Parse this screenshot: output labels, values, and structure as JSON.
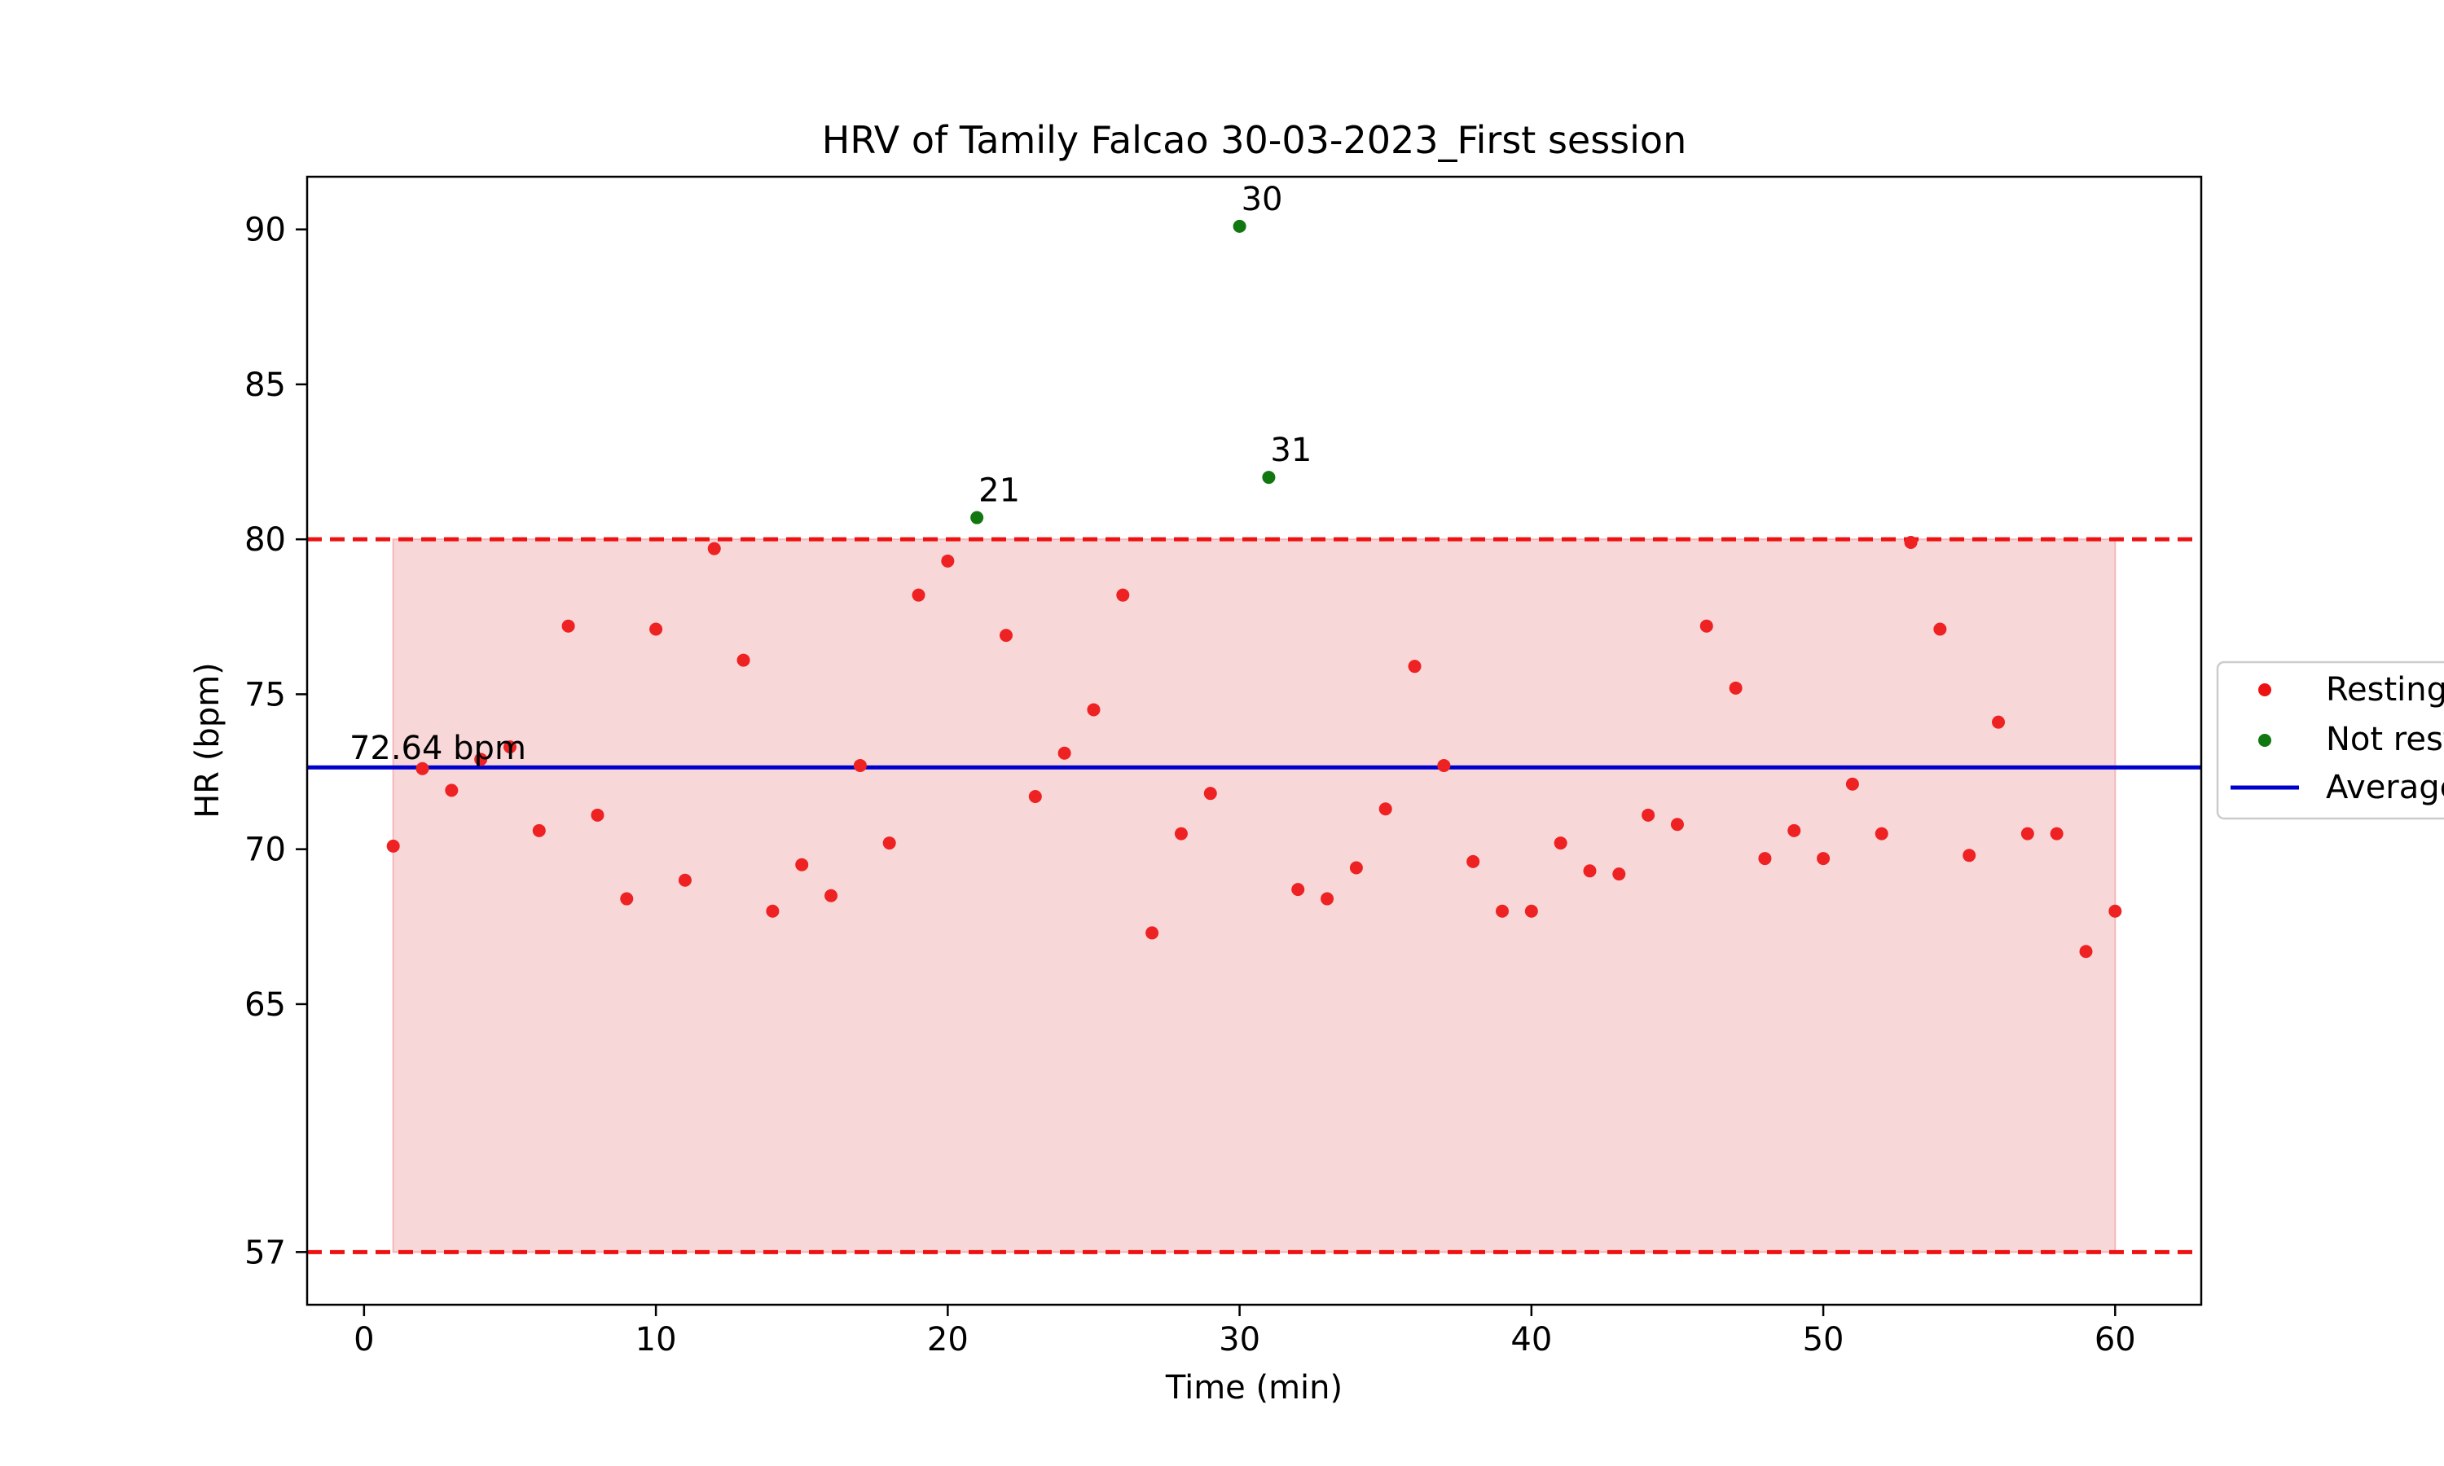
{
  "chart_data": {
    "type": "scatter",
    "title": "HRV of Tamily Falcao 30-03-2023_First session",
    "xlabel": "Time (min)",
    "ylabel": "HR (bpm)",
    "xlim": [
      -1.95,
      62.95
    ],
    "ylim": [
      55.3,
      91.7
    ],
    "xticks": [
      "0",
      "10",
      "20",
      "30",
      "40",
      "50",
      "60"
    ],
    "yticks": [
      "57",
      "65",
      "70",
      "75",
      "80",
      "85",
      "90"
    ],
    "grid": false,
    "legend_position": "right (clipped)",
    "average": {
      "value": 72.64,
      "label": "72.64 bpm",
      "color": "#0000cc"
    },
    "thresholds": {
      "upper": 80,
      "lower": 57,
      "color": "#ee1111"
    },
    "band": {
      "x_from": 1,
      "x_to": 60,
      "y_from": 57,
      "y_to": 80,
      "color": "#f8d7d8"
    },
    "series": [
      {
        "name": "Resting",
        "color": "#ee2222",
        "x": [
          1,
          2,
          3,
          4,
          5,
          6,
          7,
          8,
          9,
          10,
          11,
          12,
          13,
          14,
          15,
          16,
          17,
          18,
          19,
          20,
          22,
          23,
          24,
          25,
          26,
          27,
          28,
          29,
          32,
          33,
          34,
          35,
          36,
          37,
          38,
          39,
          40,
          41,
          42,
          43,
          44,
          45,
          46,
          47,
          48,
          49,
          50,
          51,
          52,
          53,
          54,
          55,
          56,
          57,
          58,
          59,
          60
        ],
        "y": [
          70.1,
          72.6,
          71.9,
          72.9,
          73.3,
          70.6,
          77.2,
          71.1,
          68.4,
          77.1,
          69.0,
          79.7,
          76.1,
          68.0,
          69.5,
          68.5,
          72.7,
          70.2,
          78.2,
          79.3,
          76.9,
          71.7,
          73.1,
          74.5,
          78.2,
          67.3,
          70.5,
          71.8,
          68.7,
          68.4,
          69.4,
          71.3,
          75.9,
          72.7,
          69.6,
          68.0,
          68.0,
          70.2,
          69.3,
          69.2,
          71.1,
          70.8,
          77.2,
          75.2,
          69.7,
          70.6,
          69.7,
          72.1,
          70.5,
          79.9,
          77.1,
          69.8,
          74.1,
          70.5,
          70.5,
          66.7,
          68.0
        ]
      },
      {
        "name": "Not resting",
        "color": "#117711",
        "x": [
          21,
          30,
          31
        ],
        "y": [
          80.7,
          90.1,
          82.0
        ],
        "labels": [
          "21",
          "30",
          "31"
        ]
      }
    ],
    "legend": {
      "entries": [
        "Resting",
        "Not resting",
        "Average"
      ]
    }
  }
}
